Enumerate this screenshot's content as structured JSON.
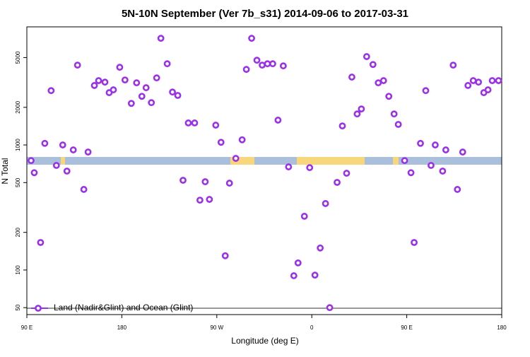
{
  "chart_data": {
    "type": "scatter",
    "title": "5N-10N September (Ver 7b_s31)   2014-09-06 to 2017-03-31",
    "x_label": "Longitude (deg E)",
    "y_label": "N Total",
    "xlim": [
      90,
      540
    ],
    "ylim": [
      44,
      8800
    ],
    "ylog": true,
    "xticks": [
      {
        "value": 90,
        "label": "90 E"
      },
      {
        "value": 180,
        "label": "180"
      },
      {
        "value": 270,
        "label": "90 W"
      },
      {
        "value": 360,
        "label": "0"
      },
      {
        "value": 450,
        "label": "90 E"
      },
      {
        "value": 540,
        "label": "180"
      }
    ],
    "yticks": [
      50,
      100,
      200,
      500,
      1000,
      2000,
      5000
    ],
    "legend": "bottom left",
    "series": [
      {
        "name": "Land (Nadir&Glint) and Ocean (Glint)",
        "color": "#9b30e8",
        "x": [
          94,
          97,
          103,
          107,
          113,
          118,
          124,
          128,
          134,
          138,
          144,
          148,
          154,
          158,
          164,
          168,
          172,
          178,
          183,
          189,
          194,
          199,
          203,
          208,
          213,
          217,
          223,
          228,
          233,
          238,
          243,
          249,
          254,
          259,
          263,
          269,
          274,
          278,
          282,
          288,
          294,
          298,
          303,
          308,
          313,
          318,
          323,
          328,
          333,
          338,
          343,
          347,
          353,
          358,
          363,
          368,
          373,
          377,
          384,
          389,
          393,
          398,
          403,
          407,
          412,
          418,
          423,
          428,
          433,
          438,
          442,
          448,
          454,
          457,
          463,
          468,
          473,
          477,
          484,
          487,
          494,
          498,
          503,
          508,
          513,
          518,
          523,
          527,
          531,
          537
        ],
        "values": [
          750,
          600,
          166,
          1030,
          2720,
          686,
          1000,
          618,
          913,
          4350,
          441,
          878,
          2990,
          3270,
          3180,
          2620,
          2760,
          4180,
          3310,
          2150,
          3140,
          2450,
          2870,
          2180,
          3440,
          7130,
          4460,
          2650,
          2490,
          522,
          1500,
          1500,
          362,
          508,
          367,
          1440,
          1050,
          130,
          495,
          781,
          1100,
          4020,
          7130,
          4760,
          4350,
          4460,
          4460,
          1580,
          4290,
          668,
          90,
          114,
          269,
          659,
          91,
          150,
          340,
          50,
          502,
          1420,
          594,
          3490,
          1770,
          1940,
          5090,
          4400,
          3140,
          3270,
          2450,
          1770,
          1460,
          750,
          600,
          166,
          1030,
          2720,
          686,
          1000,
          618,
          913,
          4350,
          441,
          878,
          2990,
          3270,
          3180,
          2620,
          2760,
          3270,
          3270
        ]
      }
    ]
  }
}
